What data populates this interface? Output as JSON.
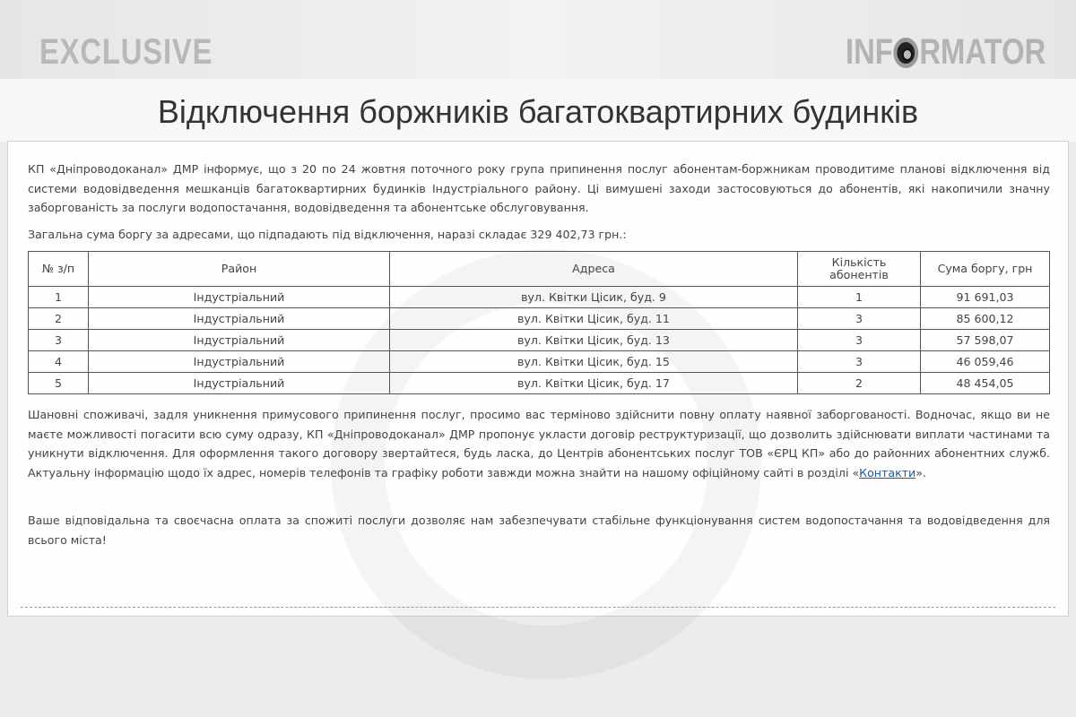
{
  "header": {
    "left_label": "EXCLUSIVE",
    "logo_pre": "INF",
    "logo_post": "RMATOR"
  },
  "title": "Відключення боржників багатоквартирних будинків",
  "intro": "КП «Дніпроводоканал» ДМР інформує, що з 20 по 24 жовтня поточного року група припинення послуг абонентам-боржникам проводитиме планові відключення від системи водовідведення мешканців багатоквартирних будинків Індустріального району. Ці вимушені заходи застосовуються до абонентів, які накопичили значну заборгованість за послуги водопостачання, водовідведення та абонентське обслуговування.",
  "total": "Загальна сума боргу за адресами, що підпадають під відключення, наразі складає 329 402,73 грн.:",
  "table": {
    "headers": [
      "№ з/п",
      "Район",
      "Адреса",
      "Кількість абонентів",
      "Сума боргу, грн"
    ],
    "rows": [
      [
        "1",
        "Індустріальний",
        "вул. Квітки Цісик, буд. 9",
        "1",
        "91 691,03"
      ],
      [
        "2",
        "Індустріальний",
        "вул. Квітки Цісик, буд. 11",
        "3",
        "85 600,12"
      ],
      [
        "3",
        "Індустріальний",
        "вул. Квітки Цісик, буд. 13",
        "3",
        "57 598,07"
      ],
      [
        "4",
        "Індустріальний",
        "вул. Квітки Цісик, буд. 15",
        "3",
        "46 059,46"
      ],
      [
        "5",
        "Індустріальний",
        "вул. Квітки Цісик, буд. 17",
        "2",
        "48 454,05"
      ]
    ]
  },
  "appeal_before": "Шановні споживачі, задля уникнення примусового припинення послуг, просимо вас терміново здійснити повну оплату наявної заборгованості. Водночас, якщо ви не маєте можливості погасити всю суму одразу, КП «Дніпроводоканал» ДМР пропонує укласти договір реструктуризації, що дозволить здійснювати виплати частинами та уникнути відключення. Для оформлення такого договору звертайтеся, будь ласка, до Центрів абонентських послуг ТОВ «ЄРЦ КП» або до районних абонентних служб. Актуальну інформацію щодо їх адрес, номерів телефонів та графіку роботи завжди можна знайти на нашому офіційному сайті в розділі «",
  "appeal_link": "Контакти",
  "appeal_after": "».",
  "closing": "Ваше відповідальна та своєчасна оплата за спожиті послуги дозволяє нам забезпечувати стабільне функціонування систем водопостачання та водовідведення для всього міста!"
}
